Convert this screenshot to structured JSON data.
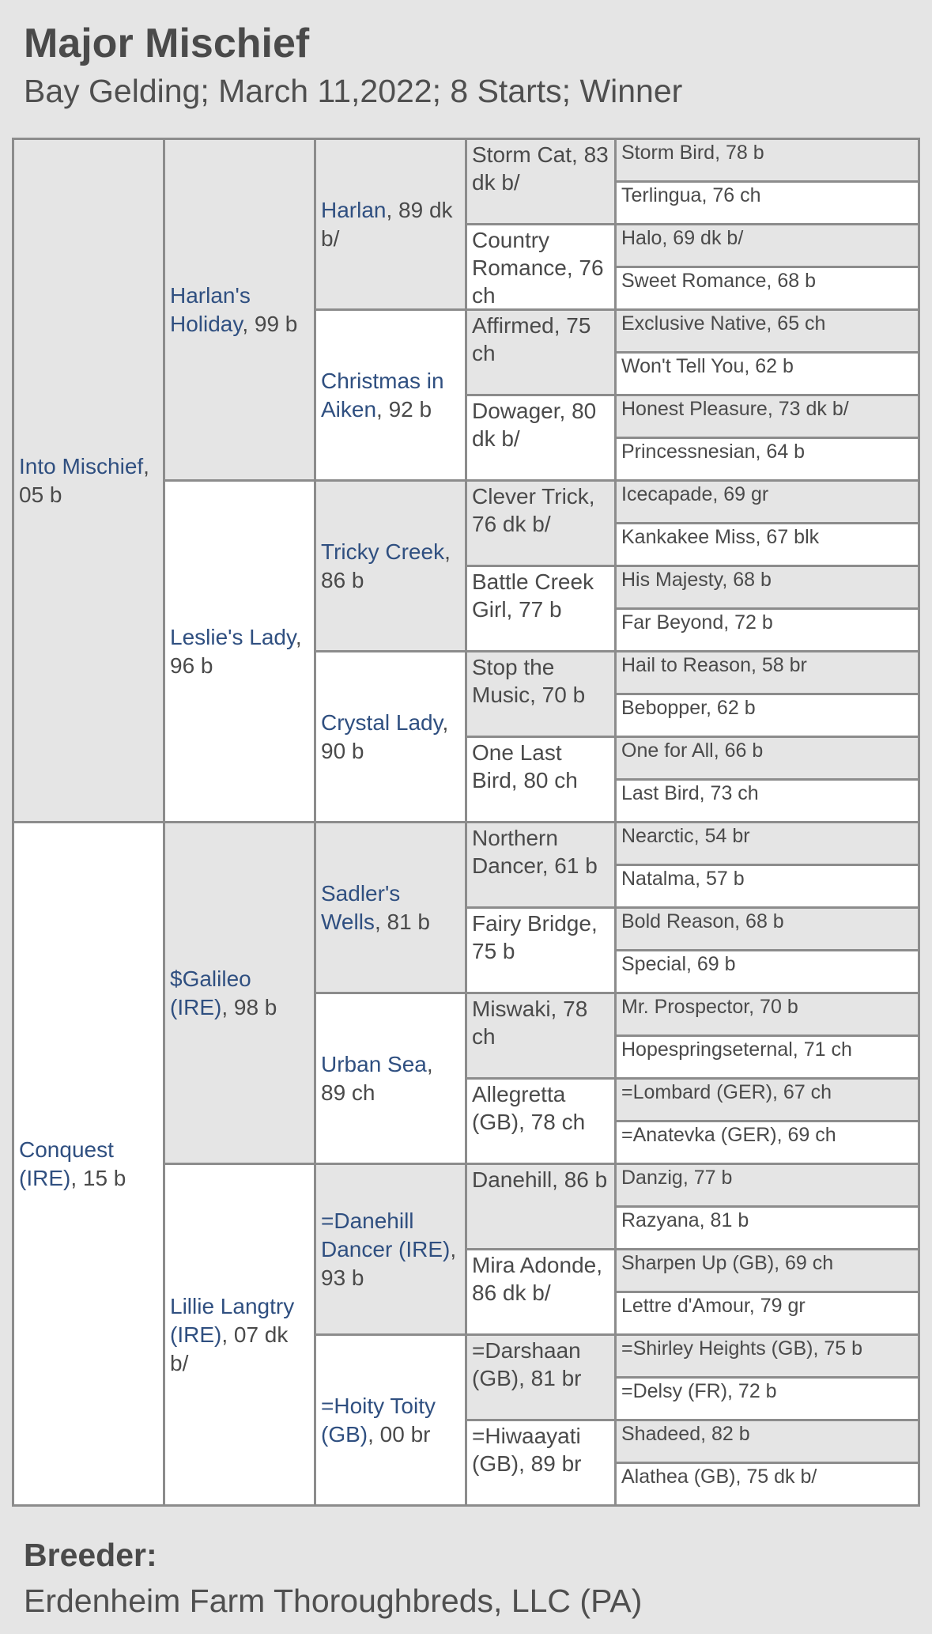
{
  "header": {
    "title": "Major Mischief",
    "subtitle": "Bay Gelding; March 11,2022; 8 Starts; Winner"
  },
  "colors": {
    "link": "#2f4f80",
    "text": "#4a4a4a",
    "border": "#8c8c8c",
    "cell_gray": "#e5e5e5",
    "cell_white": "#ffffff"
  },
  "pedigree": {
    "gen1": [
      {
        "name": "Into Mischief",
        "info": ", 05 b"
      },
      {
        "name": "Conquest (IRE)",
        "info": ", 15 b"
      }
    ],
    "gen2": [
      {
        "name": "Harlan's Holiday",
        "info": ", 99 b"
      },
      {
        "name": "Leslie's Lady",
        "info": ", 96 b"
      },
      {
        "name": "$Galileo (IRE)",
        "info": ", 98 b"
      },
      {
        "name": "Lillie Langtry (IRE)",
        "info": ", 07 dk b/"
      }
    ],
    "gen3": [
      {
        "name": "Harlan",
        "info": ", 89 dk b/"
      },
      {
        "name": "Christmas in Aiken",
        "info": ", 92 b"
      },
      {
        "name": "Tricky Creek",
        "info": ", 86 b"
      },
      {
        "name": "Crystal Lady",
        "info": ", 90 b"
      },
      {
        "name": "Sadler's Wells",
        "info": ", 81 b"
      },
      {
        "name": "Urban Sea",
        "info": ", 89 ch"
      },
      {
        "name": "=Danehill Dancer (IRE)",
        "info": ", 93 b"
      },
      {
        "name": "=Hoity Toity (GB)",
        "info": ", 00 br"
      }
    ],
    "gen4": [
      "Storm Cat, 83 dk b/",
      "Country Romance, 76 ch",
      "Affirmed, 75 ch",
      "Dowager, 80 dk b/",
      "Clever Trick, 76 dk b/",
      "Battle Creek Girl, 77 b",
      "Stop the Music, 70 b",
      "One Last Bird, 80 ch",
      "Northern Dancer, 61 b",
      "Fairy Bridge, 75 b",
      "Miswaki, 78 ch",
      "Allegretta (GB), 78 ch",
      "Danehill, 86 b",
      "Mira Adonde, 86 dk b/",
      "=Darshaan (GB), 81 br",
      "=Hiwaayati (GB), 89 br"
    ],
    "gen5": [
      "Storm Bird, 78 b",
      "Terlingua, 76 ch",
      "Halo, 69 dk b/",
      "Sweet Romance, 68 b",
      "Exclusive Native, 65 ch",
      "Won't Tell You, 62 b",
      "Honest Pleasure, 73 dk b/",
      "Princessnesian, 64 b",
      "Icecapade, 69 gr",
      "Kankakee Miss, 67 blk",
      "His Majesty, 68 b",
      "Far Beyond, 72 b",
      "Hail to Reason, 58 br",
      "Bebopper, 62 b",
      "One for All, 66 b",
      "Last Bird, 73 ch",
      "Nearctic, 54 br",
      "Natalma, 57 b",
      "Bold Reason, 68 b",
      "Special, 69 b",
      "Mr. Prospector, 70 b",
      "Hopespringseternal, 71 ch",
      "=Lombard (GER), 67 ch",
      "=Anatevka (GER), 69 ch",
      "Danzig, 77 b",
      "Razyana, 81 b",
      "Sharpen Up (GB), 69 ch",
      "Lettre d'Amour, 79 gr",
      "=Shirley Heights (GB), 75 b",
      "=Delsy (FR), 72 b",
      "Shadeed, 82 b",
      "Alathea (GB), 75 dk b/"
    ]
  },
  "breeder": {
    "label": "Breeder:",
    "value": "Erdenheim Farm Thoroughbreds, LLC (PA)"
  }
}
